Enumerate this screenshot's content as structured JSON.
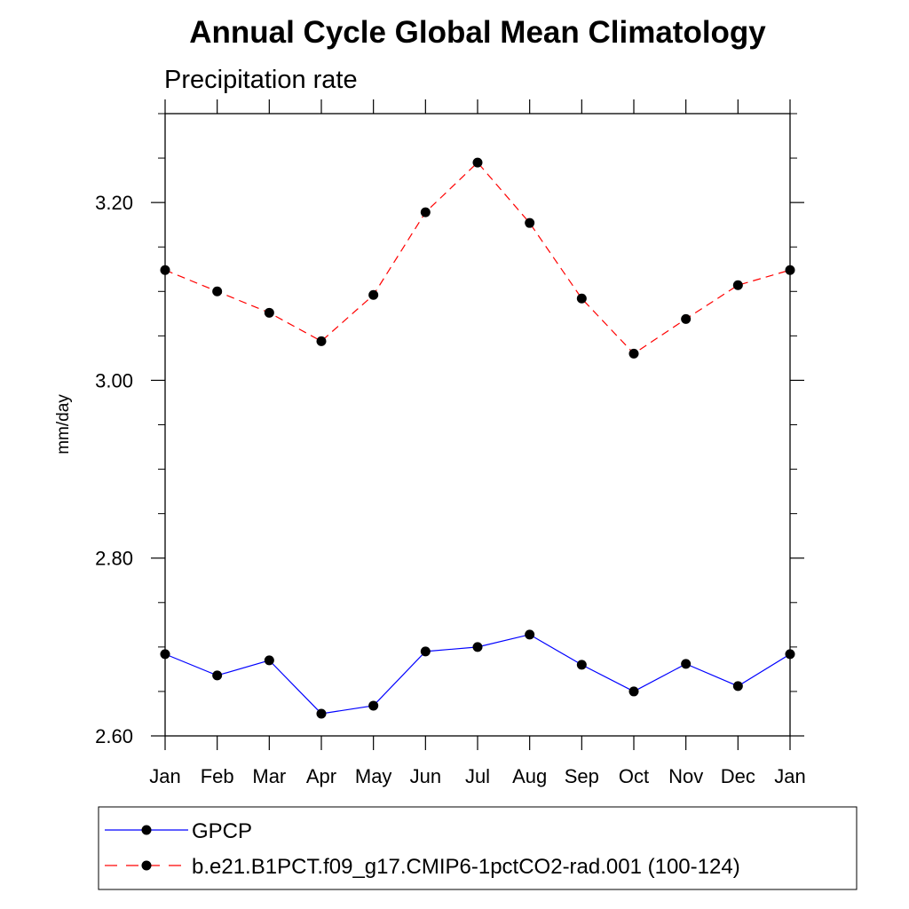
{
  "chart_data": {
    "type": "line",
    "title": "Annual Cycle Global Mean Climatology",
    "subtitle": "Precipitation rate",
    "xlabel": "",
    "ylabel": "mm/day",
    "categories": [
      "Jan",
      "Feb",
      "Mar",
      "Apr",
      "May",
      "Jun",
      "Jul",
      "Aug",
      "Sep",
      "Oct",
      "Nov",
      "Dec",
      "Jan"
    ],
    "ylim": [
      2.6,
      3.3
    ],
    "yticks": [
      2.6,
      2.8,
      3.0,
      3.2
    ],
    "ytick_labels": [
      "2.60",
      "2.80",
      "3.00",
      "3.20"
    ],
    "grid": false,
    "legend_position": "bottom",
    "series": [
      {
        "name": "GPCP",
        "color": "#0000ff",
        "dash": "solid",
        "marker": "circle",
        "values": [
          2.692,
          2.668,
          2.685,
          2.625,
          2.634,
          2.695,
          2.7,
          2.714,
          2.68,
          2.65,
          2.681,
          2.656,
          2.692
        ]
      },
      {
        "name": "b.e21.B1PCT.f09_g17.CMIP6-1pctCO2-rad.001 (100-124)",
        "color": "#ff0000",
        "dash": "dashed",
        "marker": "circle",
        "values": [
          3.124,
          3.1,
          3.076,
          3.044,
          3.096,
          3.189,
          3.245,
          3.177,
          3.092,
          3.03,
          3.069,
          3.107,
          3.124
        ]
      }
    ]
  }
}
